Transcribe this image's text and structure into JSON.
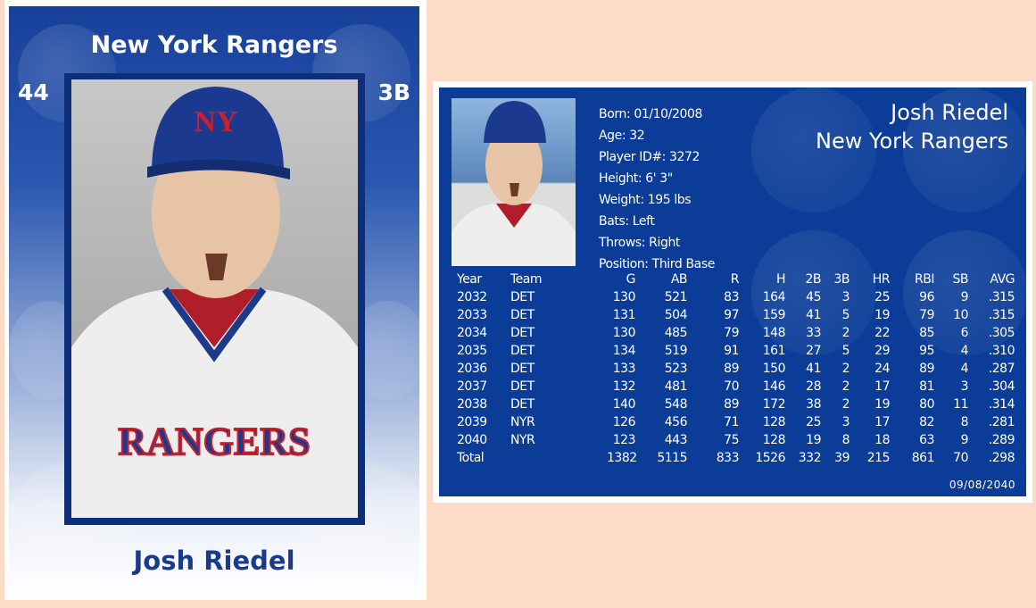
{
  "colors": {
    "background": "#fcdcc6",
    "card_blue": "#0b3d98",
    "name_blue": "#1a3a8c"
  },
  "front": {
    "team": "New York Rangers",
    "number": "44",
    "position": "3B",
    "name": "Josh Riedel",
    "cap_logo": "NY",
    "jersey_text": "RANGERS"
  },
  "back": {
    "name": "Josh Riedel",
    "team": "New York Rangers",
    "info": [
      "Born: 01/10/2008",
      "Age: 32",
      "Player ID#: 3272",
      "Height: 6' 3\"",
      "Weight: 195 lbs",
      "Bats: Left",
      "Throws: Right",
      "Position: Third Base"
    ],
    "stats": {
      "headers": [
        "Year",
        "Team",
        "G",
        "AB",
        "R",
        "H",
        "2B",
        "3B",
        "HR",
        "RBI",
        "SB",
        "AVG"
      ],
      "rows": [
        [
          "2032",
          "DET",
          "130",
          "521",
          "83",
          "164",
          "45",
          "3",
          "25",
          "96",
          "9",
          ".315"
        ],
        [
          "2033",
          "DET",
          "131",
          "504",
          "97",
          "159",
          "41",
          "5",
          "19",
          "79",
          "10",
          ".315"
        ],
        [
          "2034",
          "DET",
          "130",
          "485",
          "79",
          "148",
          "33",
          "2",
          "22",
          "85",
          "6",
          ".305"
        ],
        [
          "2035",
          "DET",
          "134",
          "519",
          "91",
          "161",
          "27",
          "5",
          "29",
          "95",
          "4",
          ".310"
        ],
        [
          "2036",
          "DET",
          "133",
          "523",
          "89",
          "150",
          "41",
          "2",
          "24",
          "89",
          "4",
          ".287"
        ],
        [
          "2037",
          "DET",
          "132",
          "481",
          "70",
          "146",
          "28",
          "2",
          "17",
          "81",
          "3",
          ".304"
        ],
        [
          "2038",
          "DET",
          "140",
          "548",
          "89",
          "172",
          "38",
          "2",
          "19",
          "80",
          "11",
          ".314"
        ],
        [
          "2039",
          "NYR",
          "126",
          "456",
          "71",
          "128",
          "25",
          "3",
          "17",
          "82",
          "8",
          ".281"
        ],
        [
          "2040",
          "NYR",
          "123",
          "443",
          "75",
          "128",
          "19",
          "8",
          "18",
          "63",
          "9",
          ".289"
        ],
        [
          "Total",
          "",
          "1382",
          "5115",
          "833",
          "1526",
          "332",
          "39",
          "215",
          "861",
          "70",
          ".298"
        ]
      ]
    },
    "date": "09/08/2040"
  }
}
